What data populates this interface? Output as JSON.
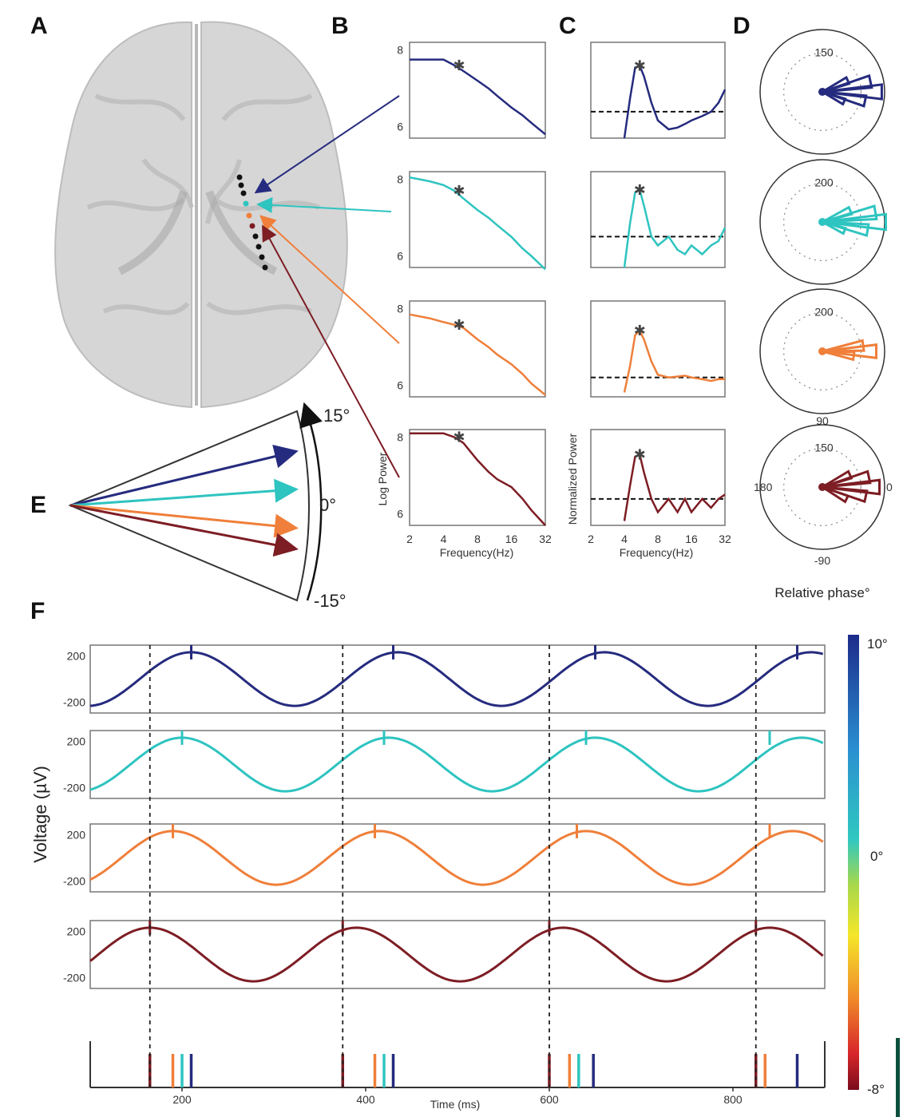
{
  "panels": {
    "A": "A",
    "B": "B",
    "C": "C",
    "D": "D",
    "E": "E",
    "F": "F"
  },
  "colors": {
    "blue": "#252b7e",
    "cyan": "#2ec4c0",
    "orange": "#ef7f3a",
    "red": "#7d1d24"
  },
  "panel_B": {
    "ylabel": "Log Power",
    "xlabel": "Frequency(Hz)",
    "yticks": [
      "8",
      "6"
    ],
    "xticks": [
      "2",
      "4",
      "8",
      "16",
      "32"
    ]
  },
  "panel_C": {
    "ylabel": "Normalized Power",
    "xlabel": "Frequency(Hz)",
    "xticks": [
      "2",
      "4",
      "8",
      "16",
      "32"
    ]
  },
  "panel_D": {
    "polar_labels": [
      "150",
      "200",
      "200",
      "150"
    ],
    "angle_labels": {
      "top": "90",
      "left": "180",
      "right": "0",
      "bottom": "-90"
    },
    "xlabel": "Relative phase°"
  },
  "panel_E": {
    "top": "15°",
    "mid": "0°",
    "bottom": "-15°"
  },
  "panel_F": {
    "ylabel": "Voltage (µV)",
    "xlabel": "Time (ms)",
    "yticks": [
      "200",
      "-200"
    ],
    "xticks": [
      "200",
      "400",
      "600",
      "800"
    ],
    "colorbar": {
      "top": "10°",
      "mid": "0°",
      "bottom": "-8°"
    }
  },
  "chart_data": [
    {
      "type": "line",
      "title": "",
      "xlabel": "Frequency(Hz)",
      "ylabel": "Log Power",
      "x_scale": "log2",
      "xlim": [
        2,
        32
      ],
      "ylim": [
        5.7,
        8.2
      ],
      "x": [
        2,
        3,
        4,
        5,
        6,
        8,
        10,
        12,
        16,
        20,
        24,
        32
      ],
      "series": [
        {
          "values": [
            7.75,
            7.75,
            7.75,
            7.6,
            7.45,
            7.2,
            7.0,
            6.8,
            6.5,
            6.3,
            6.1,
            5.8
          ],
          "peak_hz": 5.5
        },
        {
          "values": [
            8.05,
            7.95,
            7.85,
            7.7,
            7.5,
            7.2,
            7.0,
            6.8,
            6.5,
            6.2,
            6.0,
            5.65
          ],
          "peak_hz": 5.5
        },
        {
          "values": [
            7.85,
            7.75,
            7.65,
            7.58,
            7.5,
            7.2,
            7.0,
            6.8,
            6.55,
            6.3,
            6.05,
            5.75
          ],
          "peak_hz": 5.5
        },
        {
          "values": [
            8.1,
            8.1,
            8.1,
            8.0,
            7.85,
            7.4,
            7.1,
            6.9,
            6.7,
            6.4,
            6.1,
            5.7
          ],
          "peak_hz": 5.5
        }
      ]
    },
    {
      "type": "line",
      "title": "",
      "xlabel": "Frequency(Hz)",
      "ylabel": "Normalized Power",
      "x_scale": "log2",
      "xlim": [
        2,
        32
      ],
      "ylim": [
        0,
        1
      ],
      "x": [
        4,
        4.5,
        5,
        5.5,
        6,
        7,
        8,
        10,
        12,
        14,
        16,
        20,
        24,
        28,
        32
      ],
      "series": [
        {
          "values": [
            0.0,
            0.45,
            0.8,
            0.82,
            0.7,
            0.4,
            0.2,
            0.1,
            0.12,
            0.16,
            0.2,
            0.25,
            0.3,
            0.4,
            0.55
          ],
          "threshold": 0.3
        },
        {
          "values": [
            0.0,
            0.5,
            0.85,
            0.88,
            0.7,
            0.35,
            0.25,
            0.35,
            0.2,
            0.15,
            0.25,
            0.15,
            0.25,
            0.3,
            0.45
          ],
          "threshold": 0.35
        },
        {
          "values": [
            0.05,
            0.35,
            0.7,
            0.75,
            0.65,
            0.4,
            0.25,
            0.22,
            0.23,
            0.24,
            0.22,
            0.2,
            0.18,
            0.2,
            0.2
          ],
          "threshold": 0.22
        },
        {
          "values": [
            0.05,
            0.45,
            0.78,
            0.8,
            0.6,
            0.3,
            0.15,
            0.3,
            0.15,
            0.3,
            0.15,
            0.3,
            0.2,
            0.3,
            0.35
          ],
          "threshold": 0.3
        }
      ]
    },
    {
      "type": "polar-histogram",
      "xlabel": "Relative phase°",
      "rings": [
        150,
        200,
        200,
        150
      ],
      "peak_directions_deg": [
        0,
        0,
        0,
        0
      ]
    },
    {
      "type": "line",
      "xlabel": "Time (ms)",
      "ylabel": "Voltage (µV)",
      "xlim": [
        100,
        900
      ],
      "ylim": [
        -250,
        250
      ],
      "series": [
        {
          "amplitude": 230,
          "period_ms": 225,
          "peak_ms": [
            210,
            430,
            650,
            870
          ]
        },
        {
          "amplitude": 230,
          "period_ms": 225,
          "peak_ms": [
            200,
            420,
            640,
            840
          ]
        },
        {
          "amplitude": 230,
          "period_ms": 225,
          "peak_ms": [
            190,
            410,
            630,
            840
          ]
        },
        {
          "amplitude": 230,
          "period_ms": 225,
          "peak_ms": [
            165,
            375,
            600,
            825
          ]
        }
      ],
      "dashed_lines_ms": [
        165,
        375,
        600,
        825
      ],
      "spike_times": [
        {
          "t": [
            165,
            375,
            600,
            825
          ],
          "color": "red"
        },
        {
          "t": [
            190,
            410,
            622,
            835
          ],
          "color": "orange"
        },
        {
          "t": [
            200,
            420,
            632
          ],
          "color": "cyan"
        },
        {
          "t": [
            210,
            430,
            648,
            870
          ],
          "color": "blue"
        }
      ]
    }
  ]
}
